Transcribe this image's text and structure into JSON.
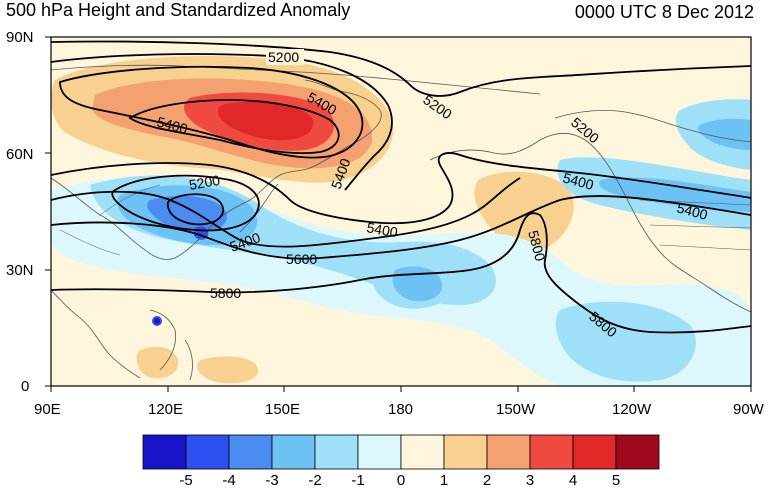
{
  "header": {
    "title": "500 hPa Height and Standardized Anomaly",
    "datetime": "0000 UTC 8 Dec 2012"
  },
  "map": {
    "lat_labels": [
      "90N",
      "60N",
      "30N",
      "0"
    ],
    "lon_labels": [
      "90E",
      "120E",
      "150E",
      "180",
      "150W",
      "120W",
      "90W"
    ],
    "contour_labels": [
      {
        "text": "5200"
      },
      {
        "text": "5400"
      },
      {
        "text": "5200"
      },
      {
        "text": "5400"
      },
      {
        "text": "5200"
      },
      {
        "text": "5200"
      },
      {
        "text": "5400"
      },
      {
        "text": "5400"
      },
      {
        "text": "5400"
      },
      {
        "text": "5400"
      },
      {
        "text": "5600"
      },
      {
        "text": "5800"
      },
      {
        "text": "5800"
      },
      {
        "text": "5800"
      },
      {
        "text": "5400"
      }
    ]
  },
  "colorbar": {
    "labels": [
      "-5",
      "-4",
      "-3",
      "-2",
      "-1",
      "0",
      "1",
      "2",
      "3",
      "4",
      "5"
    ],
    "colors": [
      "#1a14c8",
      "#2d50f0",
      "#4a8cf0",
      "#6cc2f4",
      "#9ee0f8",
      "#dcf8fc",
      "#fdf6dc",
      "#f8d090",
      "#f4a070",
      "#f04a40",
      "#e02828",
      "#a00a1e"
    ]
  },
  "colors": {
    "background": "#fdf6dc",
    "coast": "#555555",
    "contour": "#000000"
  }
}
